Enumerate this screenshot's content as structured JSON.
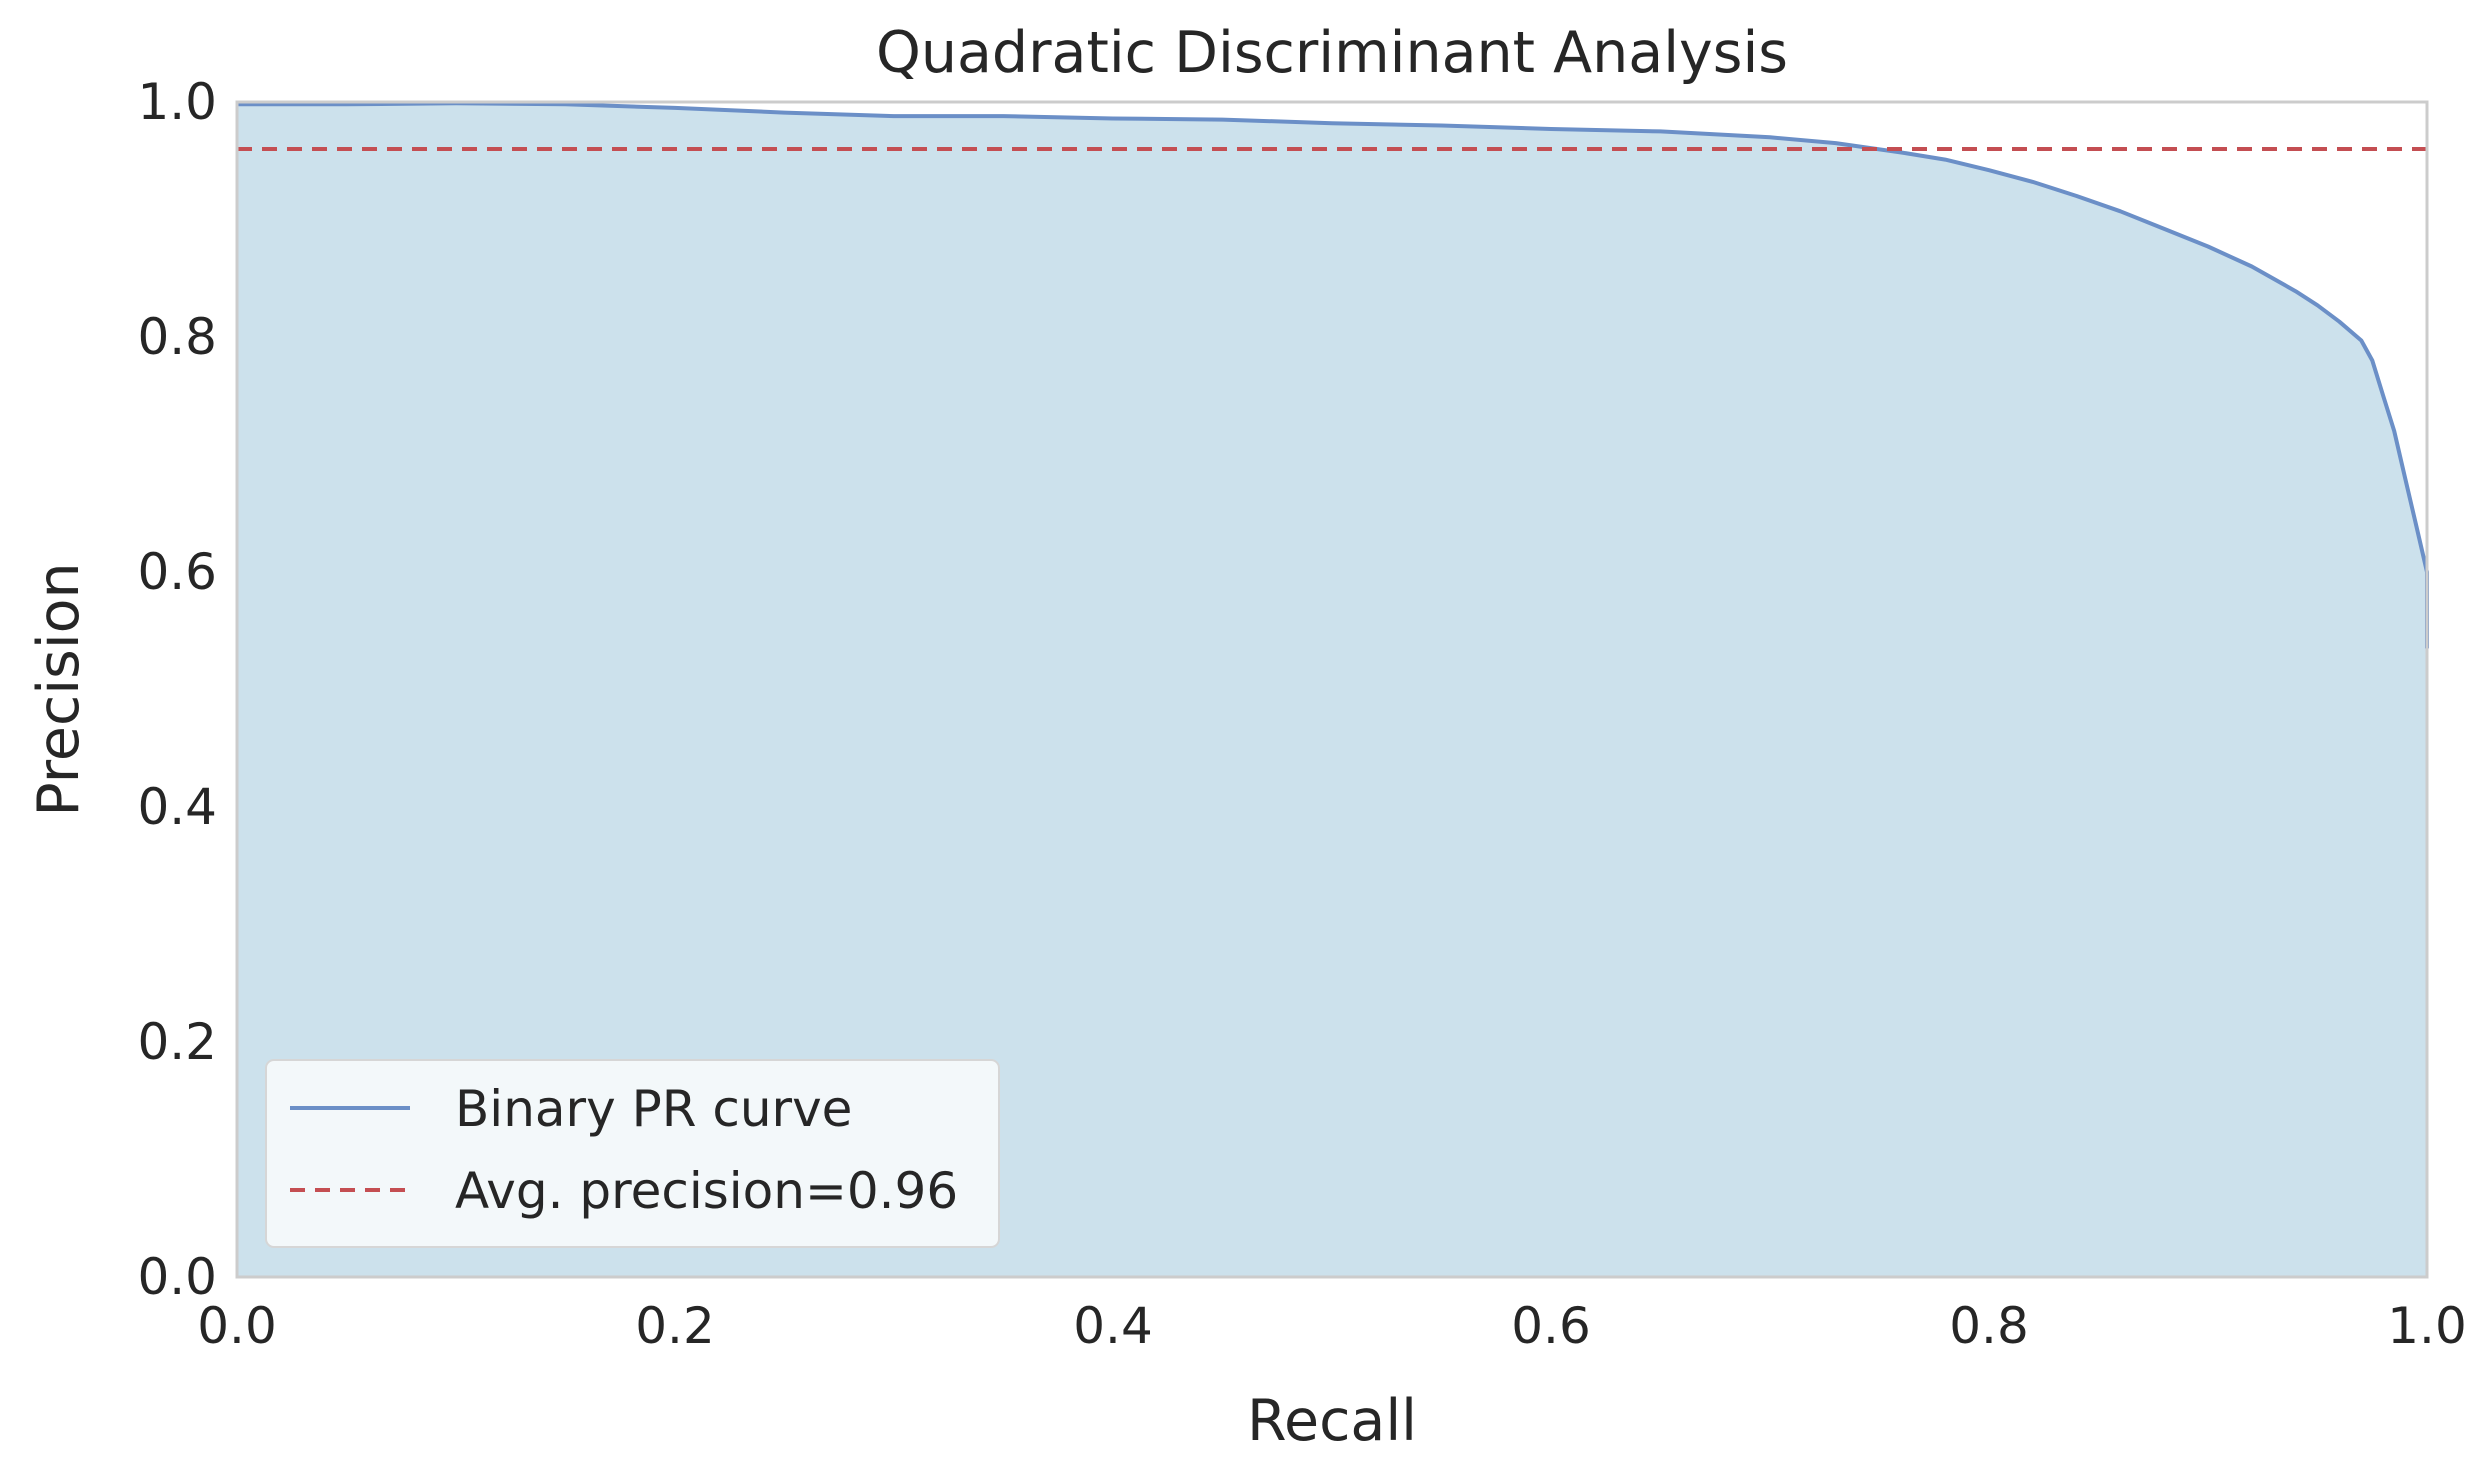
{
  "chart_data": {
    "type": "area",
    "title": "Quadratic Discriminant Analysis",
    "xlabel": "Recall",
    "ylabel": "Precision",
    "xlim": [
      0.0,
      1.0
    ],
    "ylim": [
      0.0,
      1.0
    ],
    "xticks": [
      "0.0",
      "0.2",
      "0.4",
      "0.6",
      "0.8",
      "1.0"
    ],
    "yticks": [
      "0.0",
      "0.2",
      "0.4",
      "0.6",
      "0.8",
      "1.0"
    ],
    "grid": false,
    "legend_position": "lower-left",
    "series": [
      {
        "name": "Binary PR curve",
        "style": "solid",
        "color": "#6b8fc7",
        "fill_color": "#cce1ec",
        "x": [
          0.0,
          0.05,
          0.1,
          0.15,
          0.2,
          0.25,
          0.3,
          0.35,
          0.4,
          0.45,
          0.5,
          0.55,
          0.6,
          0.65,
          0.7,
          0.73,
          0.76,
          0.78,
          0.8,
          0.82,
          0.84,
          0.86,
          0.88,
          0.9,
          0.92,
          0.94,
          0.95,
          0.96,
          0.97,
          0.975,
          0.98,
          0.985,
          0.99,
          0.995,
          1.0,
          1.0
        ],
        "y": [
          0.998,
          0.998,
          0.999,
          0.998,
          0.995,
          0.991,
          0.988,
          0.988,
          0.986,
          0.985,
          0.982,
          0.98,
          0.977,
          0.975,
          0.97,
          0.965,
          0.957,
          0.951,
          0.942,
          0.932,
          0.92,
          0.907,
          0.892,
          0.877,
          0.86,
          0.839,
          0.827,
          0.813,
          0.797,
          0.78,
          0.75,
          0.72,
          0.68,
          0.64,
          0.6,
          0.535
        ]
      },
      {
        "name": "Avg. precision=0.96",
        "style": "dashed",
        "color": "#c44e52",
        "x": [
          0.0,
          1.0
        ],
        "y": [
          0.96,
          0.96
        ]
      }
    ]
  }
}
